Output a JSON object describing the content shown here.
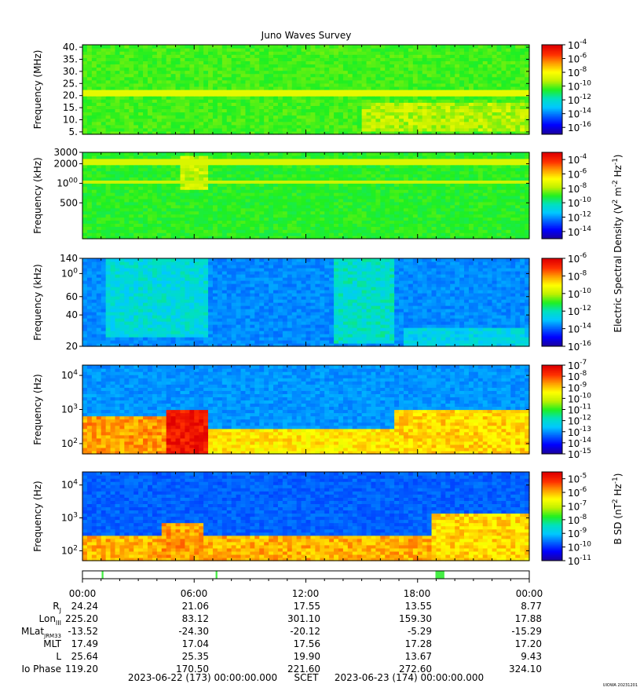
{
  "title": "Juno Waves Survey",
  "credit": "UIOWA 20231201",
  "colors": {
    "background": "#ffffff",
    "colormap": [
      "#1a00a0",
      "#0000ff",
      "#0060ff",
      "#00c8ff",
      "#00e0c0",
      "#20f020",
      "#c0f000",
      "#ffff00",
      "#ffa000",
      "#ff3000",
      "#e00000"
    ]
  },
  "chart_data": [
    {
      "type": "heatmap",
      "panel": 1,
      "ylabel": "Frequency (MHz)",
      "yscale": "linear",
      "ylim": [
        4,
        41
      ],
      "yticks": [
        {
          "v": 5,
          "t": "5."
        },
        {
          "v": 10,
          "t": "10."
        },
        {
          "v": 15,
          "t": "15."
        },
        {
          "v": 20,
          "t": "20."
        },
        {
          "v": 25,
          "t": "25."
        },
        {
          "v": 30,
          "t": "30."
        },
        {
          "v": 35,
          "t": "35."
        },
        {
          "v": 40,
          "t": "40."
        }
      ],
      "background_level": 0.52,
      "bands": [
        {
          "y": 21,
          "width": 1.2,
          "level": 0.66
        }
      ],
      "features": [
        {
          "t0": 0.63,
          "t1": 1.0,
          "f0": 5,
          "f1": 17,
          "level": 0.6
        }
      ],
      "colorbar": {
        "label": "",
        "ticks": [
          {
            "v": -4,
            "t": "10-4"
          },
          {
            "v": -6,
            "t": "10-6"
          },
          {
            "v": -8,
            "t": "10-8"
          },
          {
            "v": -10,
            "t": "10-10"
          },
          {
            "v": -12,
            "t": "10-12"
          },
          {
            "v": -14,
            "t": "10-14"
          },
          {
            "v": -16,
            "t": "10-16"
          }
        ],
        "range": [
          -17,
          -4
        ]
      }
    },
    {
      "type": "heatmap",
      "panel": 2,
      "ylabel": "Frequency (kHz)",
      "yscale": "log",
      "ylim": [
        140,
        3000
      ],
      "yticks": [
        {
          "v": 500,
          "t": "500"
        },
        {
          "v": 1000,
          "t": "1000"
        },
        {
          "v": 2000,
          "t": "2000"
        },
        {
          "v": 3000,
          "t": "3000"
        }
      ],
      "background_level": 0.5,
      "bands": [
        {
          "y": 2100,
          "width": 0.04,
          "level": 0.64
        },
        {
          "y": 1050,
          "width": 0.04,
          "level": 0.62
        }
      ],
      "features": [
        {
          "t0": 0.22,
          "t1": 0.28,
          "f0": 800,
          "f1": 2800,
          "level": 0.62
        }
      ],
      "colorbar": {
        "label": "Electric Spectral Density (V2 m-2 Hz-1)",
        "ticks": [
          {
            "v": -4,
            "t": "10-4"
          },
          {
            "v": -6,
            "t": "10-6"
          },
          {
            "v": -8,
            "t": "10-8"
          },
          {
            "v": -10,
            "t": "10-10"
          },
          {
            "v": -12,
            "t": "10-12"
          },
          {
            "v": -14,
            "t": "10-14"
          }
        ],
        "range": [
          -15,
          -3
        ]
      }
    },
    {
      "type": "heatmap",
      "panel": 3,
      "ylabel": "Frequency (kHz)",
      "yscale": "log",
      "ylim": [
        20,
        140
      ],
      "yticks": [
        {
          "v": 20,
          "t": "20"
        },
        {
          "v": 40,
          "t": "40"
        },
        {
          "v": 60,
          "t": "60"
        },
        {
          "v": 100,
          "t": "100"
        },
        {
          "v": 140,
          "t": "140"
        }
      ],
      "background_level": 0.24,
      "bands": [],
      "features": [
        {
          "t0": 0.05,
          "t1": 0.28,
          "f0": 25,
          "f1": 140,
          "level": 0.36
        },
        {
          "t0": 0.56,
          "t1": 0.7,
          "f0": 22,
          "f1": 140,
          "level": 0.38
        },
        {
          "t0": 0.72,
          "t1": 1.0,
          "f0": 20,
          "f1": 30,
          "level": 0.34
        }
      ],
      "colorbar": {
        "label": "",
        "ticks": [
          {
            "v": -6,
            "t": "10-6"
          },
          {
            "v": -8,
            "t": "10-8"
          },
          {
            "v": -10,
            "t": "10-10"
          },
          {
            "v": -12,
            "t": "10-12"
          },
          {
            "v": -14,
            "t": "10-14"
          },
          {
            "v": -16,
            "t": "10-16"
          }
        ],
        "range": [
          -16,
          -6
        ]
      }
    },
    {
      "type": "heatmap",
      "panel": 4,
      "ylabel": "Frequency (Hz)",
      "yscale": "log",
      "ylim": [
        50,
        20000
      ],
      "yticks": [
        {
          "v": 100,
          "t": "102"
        },
        {
          "v": 1000,
          "t": "103"
        },
        {
          "v": 10000,
          "t": "104"
        }
      ],
      "background_level": 0.25,
      "bands": [],
      "features": [
        {
          "t0": 0.0,
          "t1": 0.2,
          "f0": 50,
          "f1": 700,
          "level": 0.8
        },
        {
          "t0": 0.19,
          "t1": 0.28,
          "f0": 50,
          "f1": 900,
          "level": 0.95
        },
        {
          "t0": 0.28,
          "t1": 0.7,
          "f0": 50,
          "f1": 300,
          "level": 0.72
        },
        {
          "t0": 0.7,
          "t1": 1.0,
          "f0": 50,
          "f1": 1000,
          "level": 0.74
        }
      ],
      "colorbar": {
        "label": "",
        "ticks": [
          {
            "v": -7,
            "t": "10-7"
          },
          {
            "v": -8,
            "t": "10-8"
          },
          {
            "v": -9,
            "t": "10-9"
          },
          {
            "v": -10,
            "t": "10-10"
          },
          {
            "v": -11,
            "t": "10-11"
          },
          {
            "v": -12,
            "t": "10-12"
          },
          {
            "v": -13,
            "t": "10-13"
          },
          {
            "v": -14,
            "t": "10-14"
          },
          {
            "v": -15,
            "t": "10-15"
          }
        ],
        "range": [
          -15,
          -7
        ]
      }
    },
    {
      "type": "heatmap",
      "panel": 5,
      "ylabel": "Frequency (Hz)",
      "yscale": "log",
      "ylim": [
        50,
        25000
      ],
      "yticks": [
        {
          "v": 100,
          "t": "102"
        },
        {
          "v": 1000,
          "t": "103"
        },
        {
          "v": 10000,
          "t": "104"
        }
      ],
      "background_level": 0.2,
      "bands": [],
      "features": [
        {
          "t0": 0.0,
          "t1": 1.0,
          "f0": 50,
          "f1": 300,
          "level": 0.78
        },
        {
          "t0": 0.18,
          "t1": 0.27,
          "f0": 50,
          "f1": 800,
          "level": 0.8
        },
        {
          "t0": 0.78,
          "t1": 1.0,
          "f0": 50,
          "f1": 1500,
          "level": 0.74
        }
      ],
      "colorbar": {
        "label": "B SD (nT2 Hz-1)",
        "ticks": [
          {
            "v": -5,
            "t": "10-5"
          },
          {
            "v": -6,
            "t": "10-6"
          },
          {
            "v": -7,
            "t": "10-7"
          },
          {
            "v": -8,
            "t": "10-8"
          },
          {
            "v": -9,
            "t": "10-9"
          },
          {
            "v": -10,
            "t": "10-10"
          },
          {
            "v": -11,
            "t": "10-11"
          }
        ],
        "range": [
          -11,
          -4.5
        ]
      }
    }
  ],
  "mode_bar": {
    "segments": [
      {
        "t0": 0.043,
        "t1": 0.047
      },
      {
        "t0": 0.298,
        "t1": 0.302
      },
      {
        "t0": 0.79,
        "t1": 0.81
      }
    ],
    "color": "#44ee44"
  },
  "time_axis": {
    "labels": [
      "00:00",
      "06:00",
      "12:00",
      "18:00",
      "00:00"
    ],
    "rows": [
      {
        "label": "RJ",
        "values": [
          "24.24",
          "21.06",
          "17.55",
          "13.55",
          "8.77"
        ]
      },
      {
        "label": "LonIII",
        "values": [
          "225.20",
          "83.12",
          "301.10",
          "159.30",
          "17.88"
        ]
      },
      {
        "label": "MLatJRM33",
        "values": [
          "-13.52",
          "-24.30",
          "-20.12",
          "-5.29",
          "-15.29"
        ]
      },
      {
        "label": "MLT",
        "values": [
          "17.49",
          "17.04",
          "17.56",
          "17.28",
          "17.20"
        ]
      },
      {
        "label": "L",
        "values": [
          "25.64",
          "25.35",
          "19.90",
          "13.67",
          "9.43"
        ]
      },
      {
        "label": "Io Phase",
        "values": [
          "119.20",
          "170.50",
          "221.60",
          "272.60",
          "324.10"
        ]
      }
    ],
    "footer": {
      "start": "2023-06-22 (173) 00:00:00.000",
      "scet": "SCET",
      "end": "2023-06-23 (174) 00:00:00.000"
    }
  }
}
